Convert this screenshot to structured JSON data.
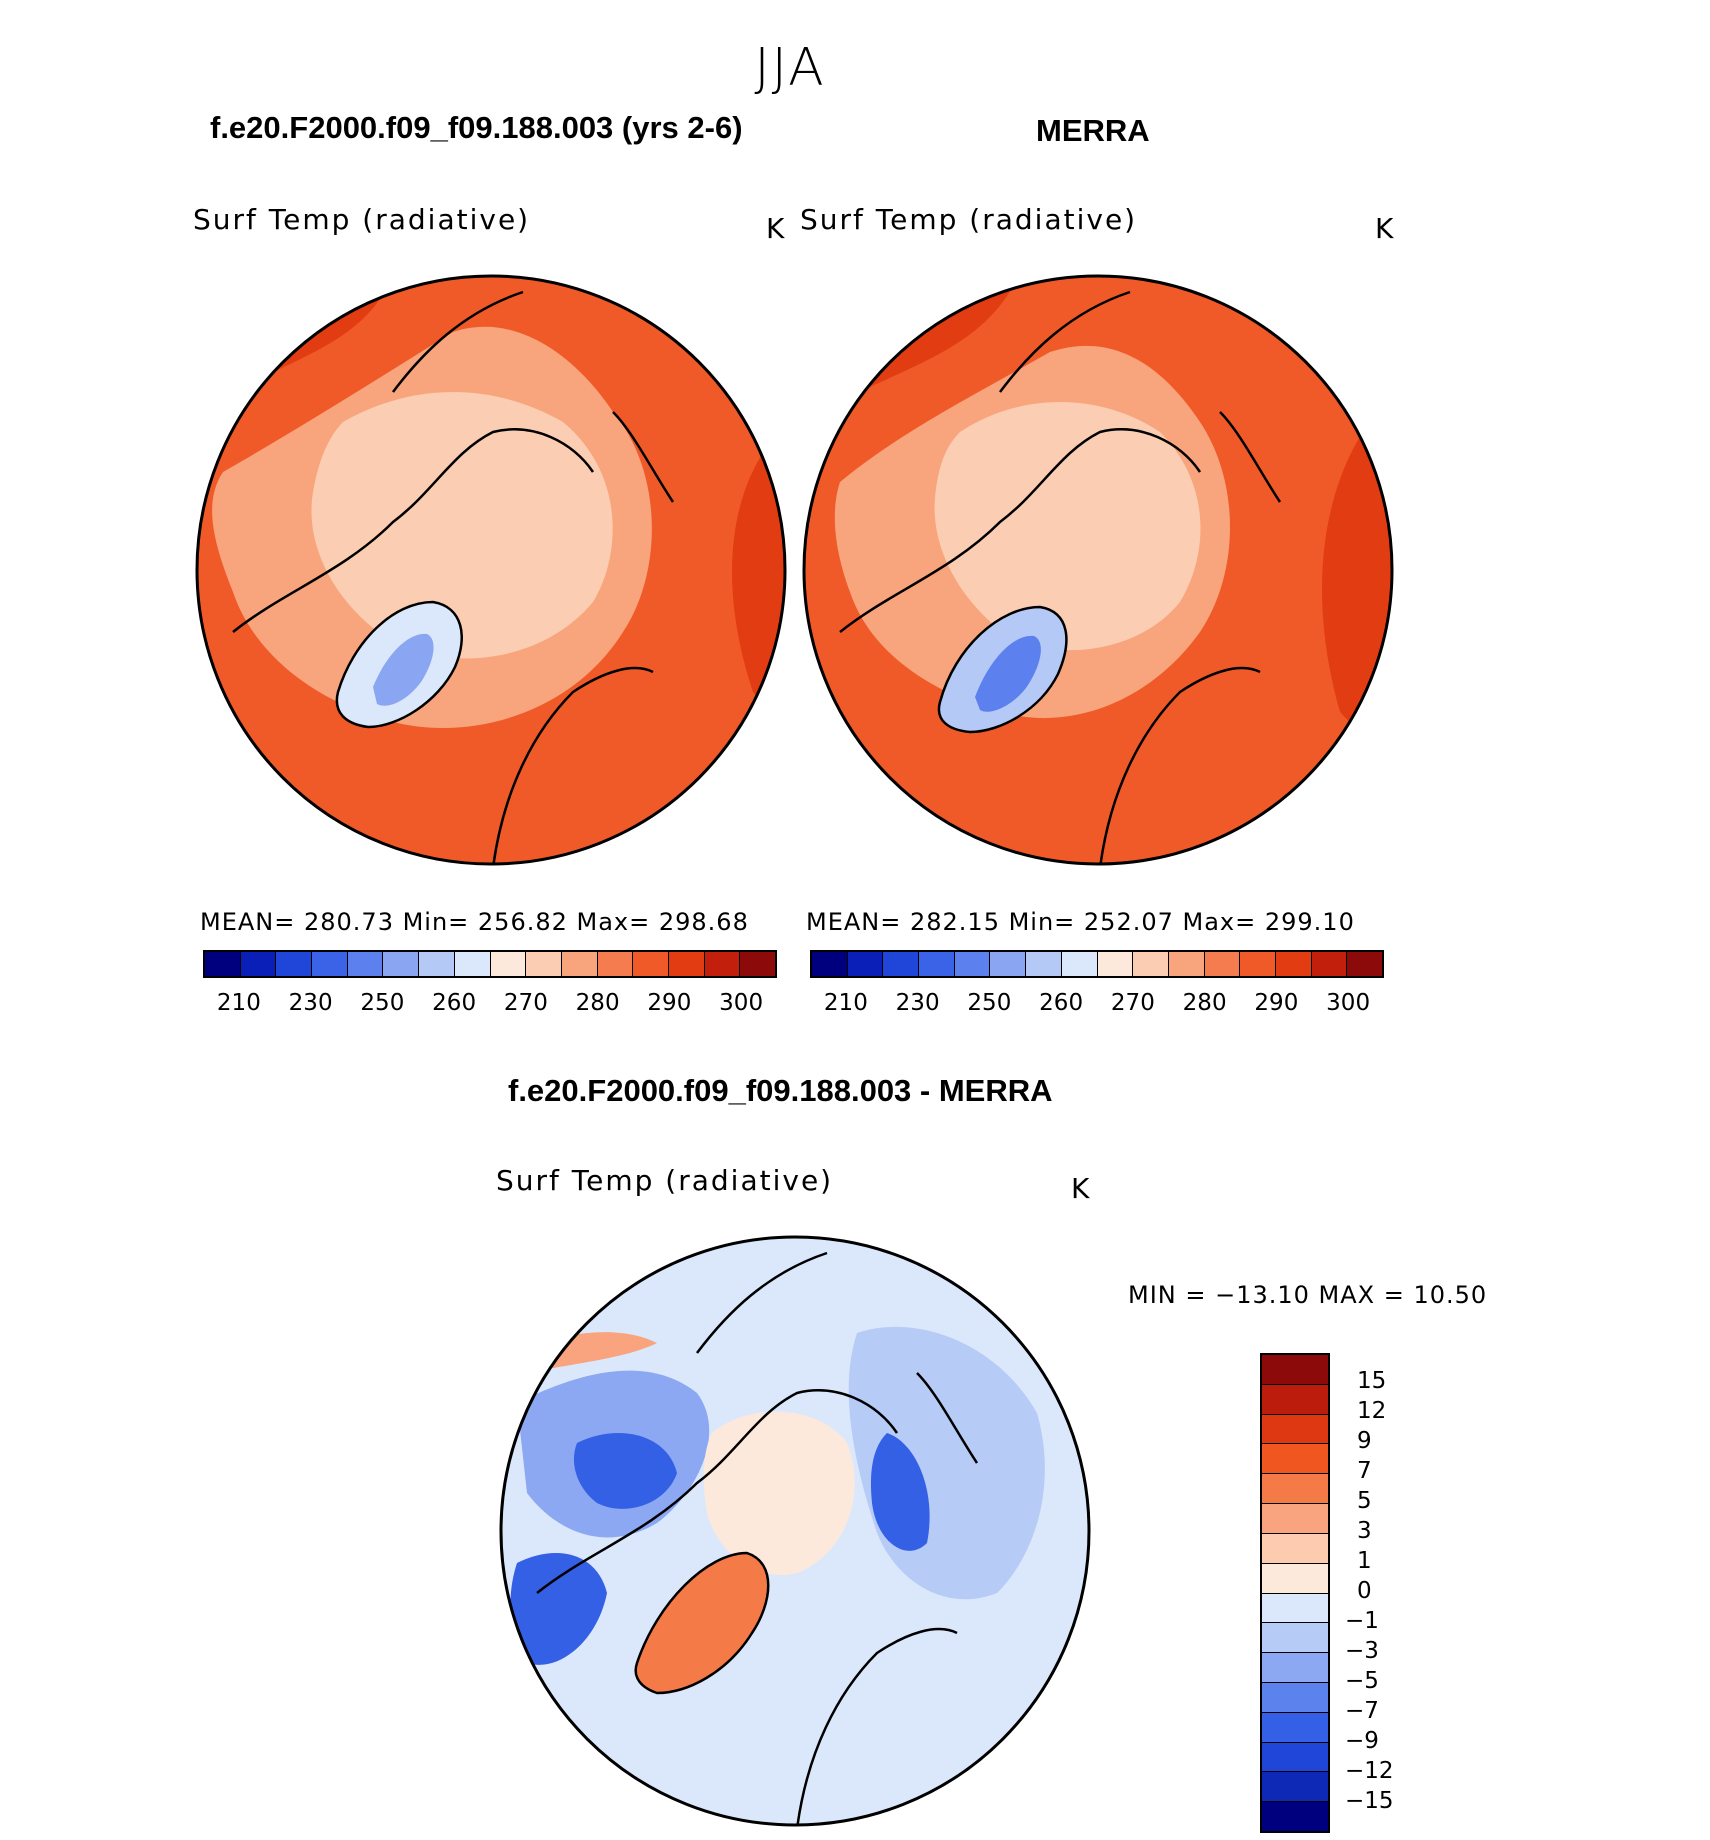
{
  "figure": {
    "title": "JJA"
  },
  "panels": {
    "left": {
      "title": "f.e20.F2000.f09_f09.188.003 (yrs 2-6)",
      "variable": "Surf Temp (radiative)",
      "units": "K",
      "stats": "MEAN= 280.73   Min= 256.82   Max= 298.68"
    },
    "right": {
      "title": "MERRA",
      "variable": "Surf Temp (radiative)",
      "units": "K",
      "stats": "MEAN= 282.15   Min= 252.07   Max= 299.10"
    },
    "diff": {
      "title": "f.e20.F2000.f09_f09.188.003 - MERRA",
      "variable": "Surf Temp (radiative)",
      "units": "K",
      "stats": "MIN = −13.10 MAX =   10.50"
    }
  },
  "colorbars": {
    "absolute": {
      "ticks": [
        "210",
        "230",
        "250",
        "260",
        "270",
        "280",
        "290",
        "300"
      ],
      "colors": [
        "#00007f",
        "#0a1fb8",
        "#1f46d8",
        "#3a63e8",
        "#5c80ee",
        "#8aa5f2",
        "#b4c9f6",
        "#dbe8fb",
        "#fde8dc",
        "#fbcdb2",
        "#f8a47c",
        "#f47c4e",
        "#ef5a28",
        "#e23d12",
        "#c2200c",
        "#8c0a0a"
      ]
    },
    "difference": {
      "ticks": [
        "15",
        "12",
        "9",
        "7",
        "5",
        "3",
        "1",
        "0",
        "−1",
        "−3",
        "−5",
        "−7",
        "−9",
        "−12",
        "−15"
      ],
      "colors": [
        "#8c0a0a",
        "#bb1c0c",
        "#de3812",
        "#f0561f",
        "#f47a47",
        "#f9a47e",
        "#fccbb0",
        "#fde9dc",
        "#dbe8fb",
        "#b6cbf6",
        "#8ca8f2",
        "#5c82ee",
        "#3460e6",
        "#1f46d8",
        "#0d29b5",
        "#00007f"
      ]
    }
  },
  "chart_data": {
    "type": "map",
    "projection": "north polar stereographic",
    "season": "JJA",
    "maps": [
      {
        "name": "f.e20.F2000.f09_f09.188.003 (yrs 2-6)",
        "variable": "Surf Temp (radiative)",
        "units": "K",
        "mean": 280.73,
        "min": 256.82,
        "max": 298.68
      },
      {
        "name": "MERRA",
        "variable": "Surf Temp (radiative)",
        "units": "K",
        "mean": 282.15,
        "min": 252.07,
        "max": 299.1
      },
      {
        "name": "f.e20.F2000.f09_f09.188.003 - MERRA",
        "variable": "Surf Temp (radiative)",
        "units": "K",
        "min": -13.1,
        "max": 10.5
      }
    ],
    "absolute_levels": [
      210,
      230,
      250,
      260,
      270,
      280,
      290,
      300
    ],
    "difference_levels": [
      15,
      12,
      9,
      7,
      5,
      3,
      1,
      0,
      -1,
      -3,
      -5,
      -7,
      -9,
      -12,
      -15
    ]
  }
}
